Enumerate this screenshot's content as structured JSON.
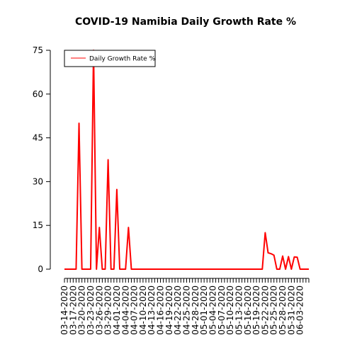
{
  "chart_data": {
    "type": "line",
    "title": "COVID-19 Namibia Daily Growth Rate %",
    "xlabel": "",
    "ylabel": "",
    "ylim": [
      0,
      75
    ],
    "yticks": [
      0,
      15,
      30,
      45,
      60,
      75
    ],
    "x_start": "03-14-2020",
    "x_end": "06-06-2020",
    "x_tick_labels": [
      "03-14-2020",
      "03-17-2020",
      "03-20-2020",
      "03-23-2020",
      "03-26-2020",
      "03-29-2020",
      "04-01-2020",
      "04-04-2020",
      "04-07-2020",
      "04-10-2020",
      "04-13-2020",
      "04-16-2020",
      "04-19-2020",
      "04-22-2020",
      "04-25-2020",
      "04-28-2020",
      "05-01-2020",
      "05-04-2020",
      "05-07-2020",
      "05-10-2020",
      "05-13-2020",
      "05-16-2020",
      "05-19-2020",
      "05-22-2020",
      "05-25-2020",
      "05-28-2020",
      "05-31-2020",
      "06-03-2020"
    ],
    "legend": {
      "position": "top-left",
      "entries": [
        "Daily Growth Rate %"
      ]
    },
    "colors": {
      "series": "#ff0000",
      "axis": "#000000"
    },
    "series": [
      {
        "name": "Daily Growth Rate %",
        "x": [
          "03-14-2020",
          "03-15-2020",
          "03-16-2020",
          "03-17-2020",
          "03-18-2020",
          "03-19-2020",
          "03-20-2020",
          "03-21-2020",
          "03-22-2020",
          "03-23-2020",
          "03-24-2020",
          "03-25-2020",
          "03-26-2020",
          "03-27-2020",
          "03-28-2020",
          "03-29-2020",
          "03-30-2020",
          "03-31-2020",
          "04-01-2020",
          "04-02-2020",
          "04-03-2020",
          "04-04-2020",
          "04-05-2020",
          "04-06-2020",
          "04-07-2020",
          "04-08-2020",
          "04-09-2020",
          "04-10-2020",
          "04-11-2020",
          "04-12-2020",
          "04-13-2020",
          "04-14-2020",
          "04-15-2020",
          "04-16-2020",
          "04-17-2020",
          "04-18-2020",
          "04-19-2020",
          "04-20-2020",
          "04-21-2020",
          "04-22-2020",
          "04-23-2020",
          "04-24-2020",
          "04-25-2020",
          "04-26-2020",
          "04-27-2020",
          "04-28-2020",
          "04-29-2020",
          "04-30-2020",
          "05-01-2020",
          "05-02-2020",
          "05-03-2020",
          "05-04-2020",
          "05-05-2020",
          "05-06-2020",
          "05-07-2020",
          "05-08-2020",
          "05-09-2020",
          "05-10-2020",
          "05-11-2020",
          "05-12-2020",
          "05-13-2020",
          "05-14-2020",
          "05-15-2020",
          "05-16-2020",
          "05-17-2020",
          "05-18-2020",
          "05-19-2020",
          "05-20-2020",
          "05-21-2020",
          "05-22-2020",
          "05-23-2020",
          "05-24-2020",
          "05-25-2020",
          "05-26-2020",
          "05-27-2020",
          "05-28-2020",
          "05-29-2020",
          "05-30-2020",
          "05-31-2020",
          "06-01-2020",
          "06-02-2020",
          "06-03-2020",
          "06-04-2020",
          "06-05-2020",
          "06-06-2020"
        ],
        "values": [
          0,
          0,
          0,
          0,
          0,
          50,
          0,
          0,
          0,
          0,
          75,
          0,
          14.3,
          0,
          0,
          37.5,
          0,
          0,
          27.3,
          0,
          0,
          0,
          14.3,
          0,
          0,
          0,
          0,
          0,
          0,
          0,
          0,
          0,
          0,
          0,
          0,
          0,
          0,
          0,
          0,
          0,
          0,
          0,
          0,
          0,
          0,
          0,
          0,
          0,
          0,
          0,
          0,
          0,
          0,
          0,
          0,
          0,
          0,
          0,
          0,
          0,
          0,
          0,
          0,
          0,
          0,
          0,
          0,
          0,
          0,
          12.5,
          5.6,
          5.3,
          4.8,
          0,
          0,
          4.5,
          0,
          4.3,
          0,
          4.2,
          4.1,
          0,
          0,
          0,
          0
        ]
      }
    ]
  }
}
